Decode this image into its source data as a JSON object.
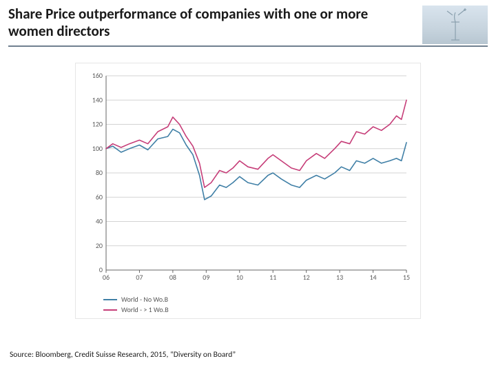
{
  "header": {
    "title": "Share Price outperformance of companies with one or more women directors",
    "rule_color": "#6f7f8f",
    "logo_bg_top": "#d9e4ee",
    "logo_bg_bottom": "#b7c6d1",
    "logo_stroke": "#8aa0ae"
  },
  "source": "Source: Bloomberg, Credit Suisse Research, 2015, “Diversity on Board”",
  "chart": {
    "type": "line",
    "x_categories": [
      "06",
      "07",
      "08",
      "09",
      "10",
      "11",
      "12",
      "13",
      "14",
      "15"
    ],
    "x_index": [
      0,
      1,
      2,
      3,
      4,
      5,
      6,
      7,
      8,
      9
    ],
    "ylim": [
      0,
      160
    ],
    "ytick_step": 20,
    "yticks": [
      0,
      20,
      40,
      60,
      80,
      100,
      120,
      140,
      160
    ],
    "xtick_color": "#777777",
    "ytick_color": "#777777",
    "grid_color": "#d3d3d3",
    "axis_color": "#666666",
    "background_color": "#ffffff",
    "label_fontsize": 10,
    "line_width": 1.6,
    "series": [
      {
        "name": "World - No Wo.B",
        "color": "#3f7fa6",
        "points": [
          [
            0.0,
            100
          ],
          [
            0.2,
            102
          ],
          [
            0.45,
            97
          ],
          [
            0.7,
            100
          ],
          [
            1.0,
            103
          ],
          [
            1.25,
            99
          ],
          [
            1.55,
            108
          ],
          [
            1.85,
            110
          ],
          [
            2.0,
            116
          ],
          [
            2.2,
            113
          ],
          [
            2.4,
            103
          ],
          [
            2.6,
            95
          ],
          [
            2.8,
            78
          ],
          [
            2.95,
            58
          ],
          [
            3.15,
            61
          ],
          [
            3.4,
            70
          ],
          [
            3.6,
            68
          ],
          [
            3.8,
            72
          ],
          [
            4.0,
            77
          ],
          [
            4.25,
            72
          ],
          [
            4.55,
            70
          ],
          [
            4.85,
            78
          ],
          [
            5.0,
            80
          ],
          [
            5.25,
            75
          ],
          [
            5.55,
            70
          ],
          [
            5.8,
            68
          ],
          [
            6.0,
            74
          ],
          [
            6.3,
            78
          ],
          [
            6.55,
            75
          ],
          [
            6.85,
            80
          ],
          [
            7.05,
            85
          ],
          [
            7.3,
            82
          ],
          [
            7.5,
            90
          ],
          [
            7.75,
            88
          ],
          [
            8.0,
            92
          ],
          [
            8.25,
            88
          ],
          [
            8.5,
            90
          ],
          [
            8.7,
            92
          ],
          [
            8.85,
            90
          ],
          [
            9.0,
            105
          ]
        ]
      },
      {
        "name": "World - > 1 Wo.B",
        "color": "#c63d78",
        "points": [
          [
            0.0,
            100
          ],
          [
            0.2,
            104
          ],
          [
            0.45,
            101
          ],
          [
            0.7,
            104
          ],
          [
            1.0,
            107
          ],
          [
            1.25,
            104
          ],
          [
            1.55,
            114
          ],
          [
            1.85,
            118
          ],
          [
            2.0,
            126
          ],
          [
            2.2,
            120
          ],
          [
            2.4,
            110
          ],
          [
            2.6,
            102
          ],
          [
            2.8,
            88
          ],
          [
            2.95,
            68
          ],
          [
            3.15,
            72
          ],
          [
            3.4,
            82
          ],
          [
            3.6,
            80
          ],
          [
            3.8,
            84
          ],
          [
            4.0,
            90
          ],
          [
            4.25,
            85
          ],
          [
            4.55,
            83
          ],
          [
            4.85,
            92
          ],
          [
            5.0,
            95
          ],
          [
            5.25,
            90
          ],
          [
            5.55,
            84
          ],
          [
            5.8,
            82
          ],
          [
            6.0,
            90
          ],
          [
            6.3,
            96
          ],
          [
            6.55,
            92
          ],
          [
            6.85,
            100
          ],
          [
            7.05,
            106
          ],
          [
            7.3,
            104
          ],
          [
            7.5,
            114
          ],
          [
            7.75,
            112
          ],
          [
            8.0,
            118
          ],
          [
            8.25,
            115
          ],
          [
            8.5,
            120
          ],
          [
            8.7,
            127
          ],
          [
            8.85,
            124
          ],
          [
            9.0,
            140
          ]
        ]
      }
    ],
    "legend": {
      "items": [
        {
          "label": "World - No Wo.B",
          "color": "#3f7fa6"
        },
        {
          "label": "World - > 1 Wo.B",
          "color": "#c63d78"
        }
      ]
    }
  }
}
